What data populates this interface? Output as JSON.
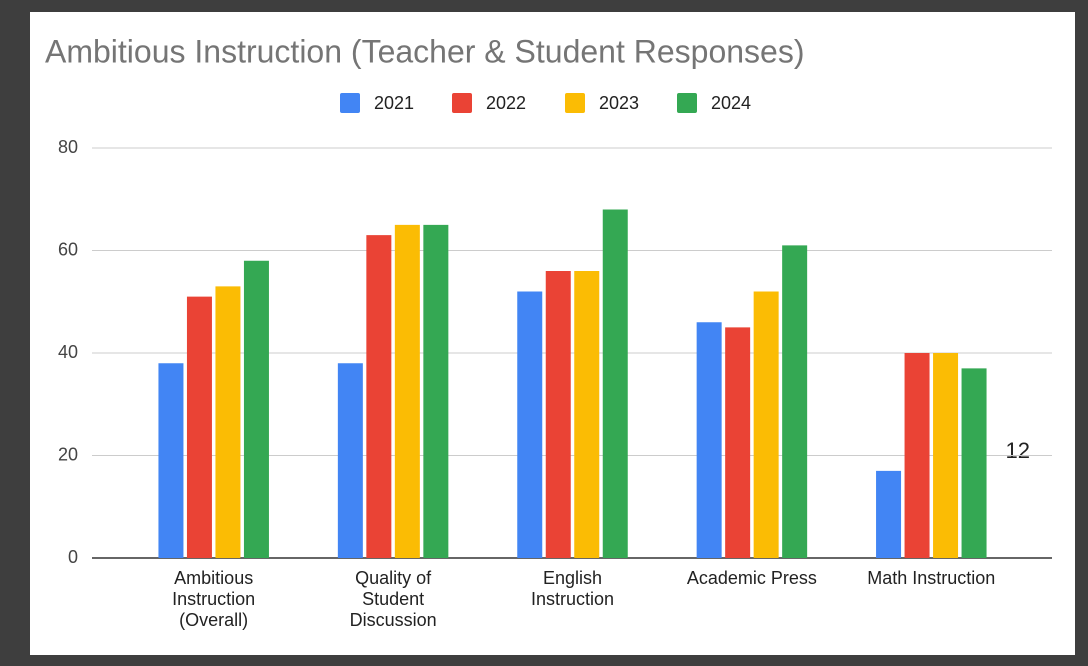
{
  "chart_data": {
    "type": "bar",
    "title": "Ambitious Instruction (Teacher & Student Responses)",
    "categories": [
      "Ambitious Instruction (Overall)",
      "Quality of Student Discussion",
      "English Instruction",
      "Academic Press",
      "Math Instruction"
    ],
    "series": [
      {
        "name": "2021",
        "color": "#4285f4",
        "values": [
          38,
          38,
          52,
          46,
          17
        ]
      },
      {
        "name": "2022",
        "color": "#ea4335",
        "values": [
          51,
          63,
          56,
          45,
          40
        ]
      },
      {
        "name": "2023",
        "color": "#fbbc04",
        "values": [
          53,
          65,
          56,
          52,
          40
        ]
      },
      {
        "name": "2024",
        "color": "#34a853",
        "values": [
          58,
          65,
          68,
          61,
          37
        ]
      }
    ],
    "ylim": [
      0,
      80
    ],
    "yticks": [
      0,
      20,
      40,
      60,
      80
    ],
    "grid": true,
    "legend": "top",
    "annotation": "12"
  }
}
